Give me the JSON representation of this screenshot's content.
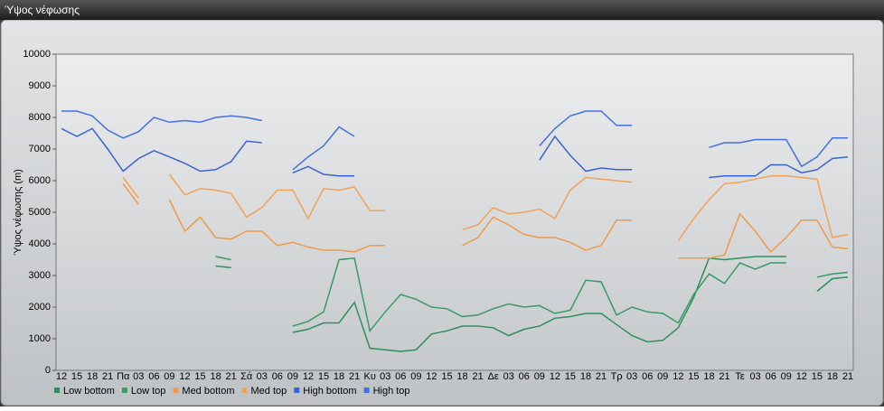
{
  "chart_data": {
    "type": "line",
    "title": "Ύψος νέφωσης",
    "y_label": "Ύψος νέφωσης (m)",
    "categories": [
      "12",
      "15",
      "18",
      "21",
      "Πα",
      "03",
      "06",
      "09",
      "12",
      "15",
      "18",
      "21",
      "Σά",
      "03",
      "06",
      "09",
      "12",
      "15",
      "18",
      "21",
      "Κυ",
      "03",
      "06",
      "09",
      "12",
      "15",
      "18",
      "21",
      "Δε",
      "03",
      "06",
      "09",
      "12",
      "15",
      "18",
      "21",
      "Τρ",
      "03",
      "06",
      "09",
      "12",
      "15",
      "18",
      "21",
      "Τε",
      "03",
      "06",
      "09",
      "12",
      "15",
      "18",
      "21"
    ],
    "ylim": [
      0,
      10000
    ],
    "yticks": [
      0,
      1000,
      2000,
      3000,
      4000,
      5000,
      6000,
      7000,
      8000,
      9000,
      10000
    ],
    "grid": false,
    "series": [
      {
        "name": "Low bottom",
        "color": "#2f8f5a",
        "values": [
          null,
          null,
          null,
          null,
          null,
          null,
          null,
          null,
          null,
          null,
          3300,
          3250,
          null,
          null,
          null,
          1200,
          1300,
          1500,
          1500,
          2150,
          700,
          650,
          600,
          650,
          1150,
          1250,
          1400,
          1400,
          1350,
          1100,
          1300,
          1400,
          1650,
          1700,
          1800,
          1800,
          1450,
          1100,
          900,
          950,
          1350,
          2300,
          3550,
          3500,
          3550,
          3600,
          3600,
          3600,
          null,
          2500,
          2900,
          2950
        ]
      },
      {
        "name": "Low top",
        "color": "#3a9a66",
        "values": [
          null,
          null,
          null,
          null,
          null,
          null,
          null,
          null,
          null,
          null,
          3600,
          3500,
          null,
          null,
          null,
          1400,
          1550,
          1850,
          3500,
          3550,
          1250,
          1850,
          2400,
          2250,
          2000,
          1950,
          1700,
          1750,
          1950,
          2100,
          2000,
          2050,
          1800,
          1900,
          2850,
          2800,
          1750,
          2000,
          1850,
          1800,
          1500,
          2400,
          3050,
          2750,
          3400,
          3200,
          3400,
          3400,
          null,
          2950,
          3050,
          3100
        ]
      },
      {
        "name": "Med bottom",
        "color": "#ee9a4a",
        "values": [
          null,
          null,
          null,
          null,
          5900,
          5250,
          null,
          5400,
          4400,
          4850,
          4200,
          4150,
          4400,
          4400,
          3950,
          4050,
          3900,
          3800,
          3800,
          3750,
          3950,
          3950,
          null,
          null,
          null,
          null,
          3950,
          4200,
          4850,
          4600,
          4300,
          4200,
          4200,
          4050,
          3800,
          3950,
          4750,
          4750,
          null,
          null,
          3550,
          3550,
          3550,
          3650,
          4950,
          4400,
          3750,
          4200,
          4750,
          4750,
          3900,
          3850
        ]
      },
      {
        "name": "Med top",
        "color": "#f2a257",
        "values": [
          null,
          null,
          null,
          null,
          6100,
          5450,
          null,
          6200,
          5550,
          5750,
          5700,
          5600,
          4850,
          5150,
          5700,
          5700,
          4800,
          5750,
          5700,
          5800,
          5050,
          5050,
          null,
          null,
          null,
          null,
          4450,
          4600,
          5150,
          4950,
          5000,
          5100,
          4800,
          5700,
          6100,
          6050,
          6000,
          5950,
          null,
          null,
          4100,
          4800,
          5400,
          5900,
          5950,
          6050,
          6150,
          6150,
          6100,
          6050,
          4200,
          4300
        ]
      },
      {
        "name": "High bottom",
        "color": "#3a62d8",
        "values": [
          7650,
          7400,
          7650,
          7000,
          6300,
          6700,
          6950,
          6750,
          6550,
          6300,
          6350,
          6600,
          7250,
          7200,
          null,
          6250,
          6450,
          6200,
          6150,
          6150,
          null,
          null,
          null,
          null,
          null,
          null,
          null,
          null,
          null,
          null,
          null,
          6650,
          7400,
          6800,
          6300,
          6400,
          6350,
          6350,
          null,
          null,
          null,
          null,
          6100,
          6150,
          6150,
          6150,
          6500,
          6500,
          6250,
          6350,
          6700,
          6750
        ]
      },
      {
        "name": "High top",
        "color": "#4470e6",
        "values": [
          8200,
          8200,
          8050,
          7600,
          7350,
          7550,
          8000,
          7850,
          7900,
          7850,
          8000,
          8050,
          8000,
          7900,
          null,
          6350,
          6750,
          7100,
          7700,
          7400,
          null,
          null,
          null,
          null,
          null,
          null,
          null,
          null,
          null,
          null,
          null,
          7100,
          7650,
          8050,
          8200,
          8200,
          7750,
          7750,
          null,
          null,
          null,
          null,
          7050,
          7200,
          7200,
          7300,
          7300,
          7300,
          6450,
          6750,
          7350,
          7350
        ]
      }
    ]
  }
}
